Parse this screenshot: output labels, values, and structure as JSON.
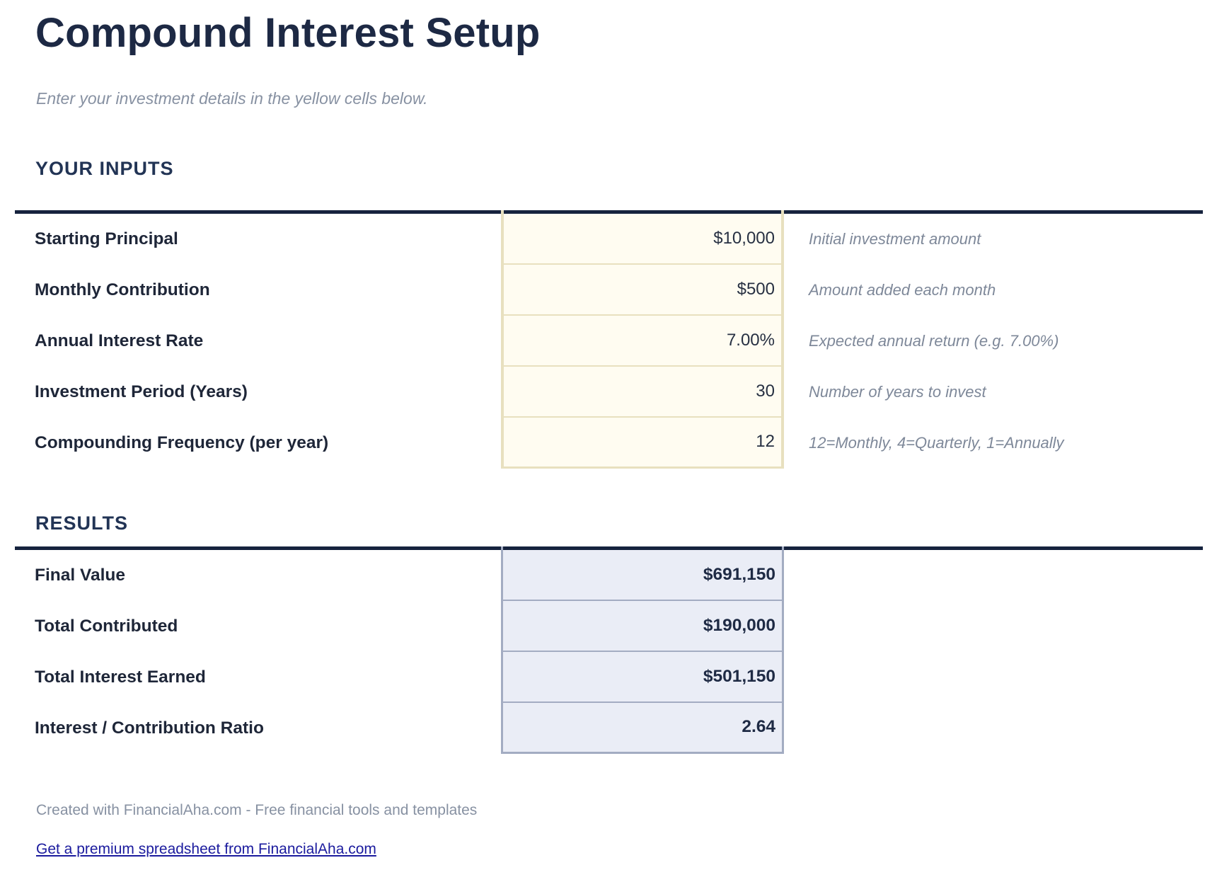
{
  "page": {
    "title": "Compound Interest Setup",
    "subtitle": "Enter your investment details in the yellow cells below."
  },
  "inputs": {
    "heading": "YOUR INPUTS",
    "rows": [
      {
        "label": "Starting Principal",
        "value": "$10,000",
        "description": "Initial investment amount"
      },
      {
        "label": "Monthly Contribution",
        "value": "$500",
        "description": "Amount added each month"
      },
      {
        "label": "Annual Interest Rate",
        "value": "7.00%",
        "description": "Expected annual return (e.g. 7.00%)"
      },
      {
        "label": "Investment Period (Years)",
        "value": "30",
        "description": "Number of years to invest"
      },
      {
        "label": "Compounding Frequency (per year)",
        "value": "12",
        "description": "12=Monthly, 4=Quarterly, 1=Annually"
      }
    ]
  },
  "results": {
    "heading": "RESULTS",
    "rows": [
      {
        "label": "Final Value",
        "value": "$691,150"
      },
      {
        "label": "Total Contributed",
        "value": "$190,000"
      },
      {
        "label": "Total Interest Earned",
        "value": "$501,150"
      },
      {
        "label": "Interest / Contribution Ratio",
        "value": "2.64"
      }
    ]
  },
  "footer": {
    "credit": "Created with FinancialAha.com - Free financial tools and templates",
    "link_label": "Get a premium spreadsheet from FinancialAha.com"
  },
  "colors": {
    "heading_navy": "#1d2944",
    "rule_navy": "#16233e",
    "input_cell_bg": "#fffcf1",
    "input_cell_border": "#e8e0bf",
    "result_cell_bg": "#eaedf6",
    "result_cell_border": "#a3acc2",
    "muted_text": "#8791a2",
    "link_color": "#1b1b9e"
  }
}
